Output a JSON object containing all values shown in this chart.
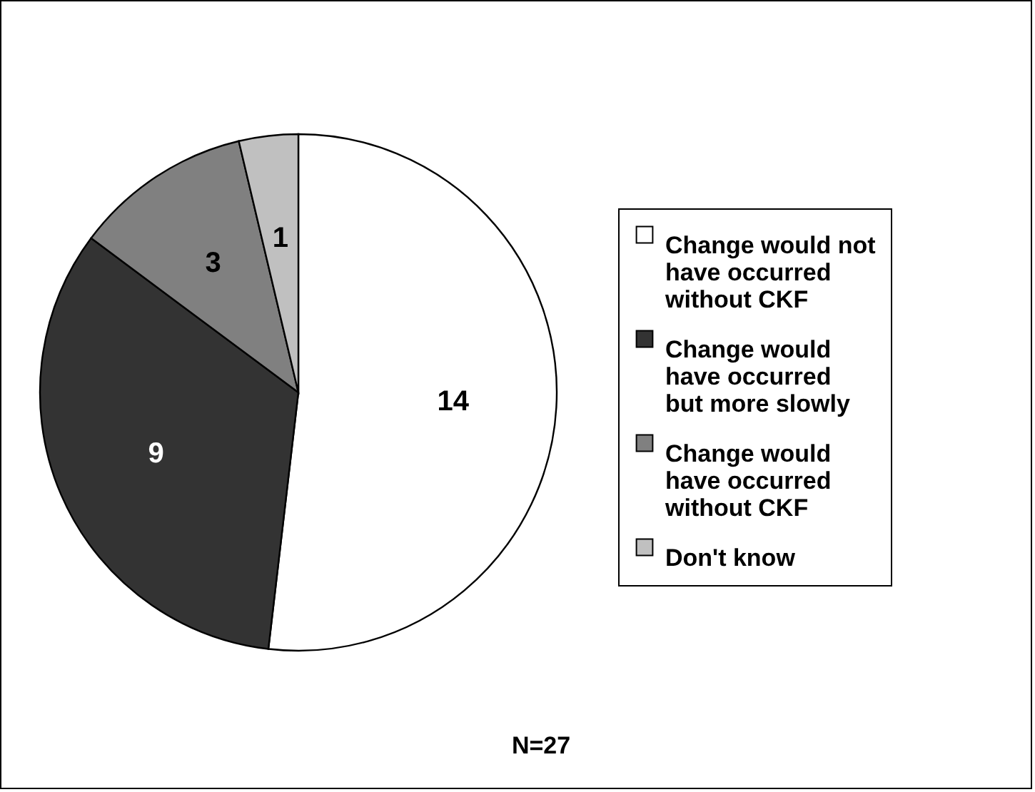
{
  "chart_data": {
    "type": "pie",
    "categories": [
      "Change would not have occurred without CKF",
      "Change would have occurred but more slowly",
      "Change would have occurred without CKF",
      "Don't know"
    ],
    "values": [
      14,
      9,
      3,
      1
    ],
    "colors": [
      "#ffffff",
      "#333333",
      "#808080",
      "#c0c0c0"
    ],
    "data_labels": true,
    "legend": "right",
    "annotations": [
      "N=27"
    ]
  }
}
